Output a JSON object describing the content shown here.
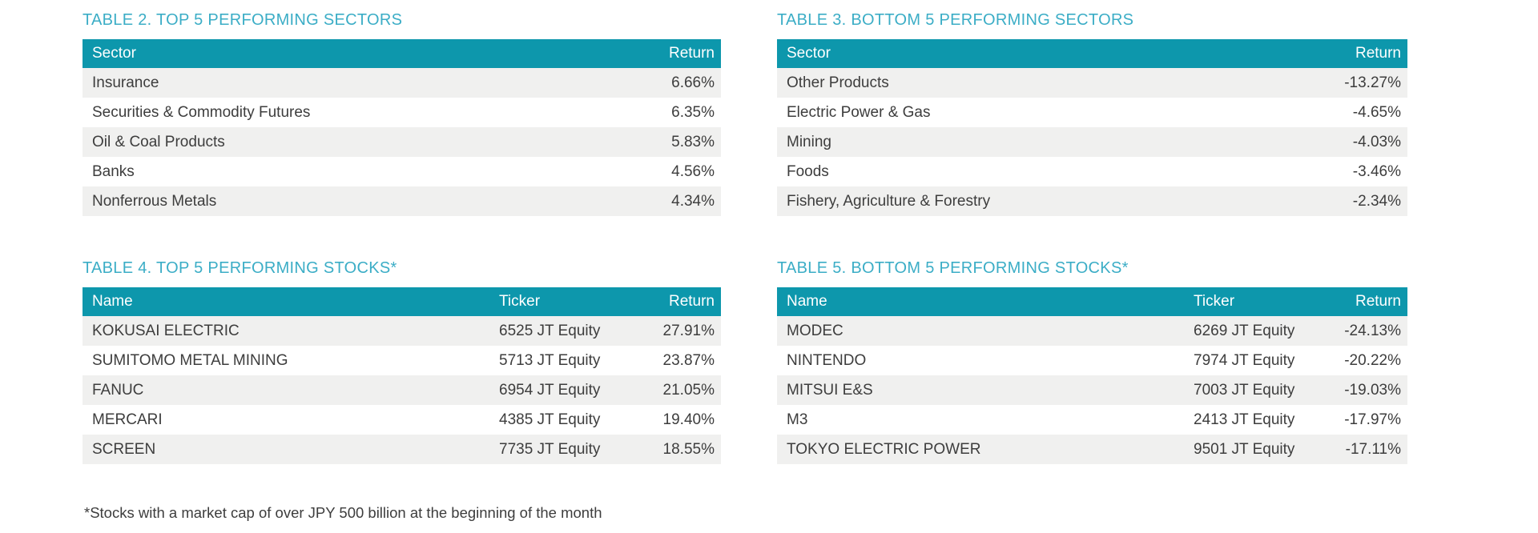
{
  "page": {
    "footnote": "*Stocks with a market cap of over JPY 500 billion at the beginning of the month"
  },
  "colors": {
    "title_accent": "#3badc6",
    "table_header_bg": "#0d97ac",
    "table_header_text": "#ffffff",
    "row_alt_bg": "#f0f0ef",
    "body_text": "#3d3d3d"
  },
  "tables": {
    "top_sectors": {
      "title": "TABLE 2. TOP 5 PERFORMING SECTORS",
      "columns": {
        "sector": "Sector",
        "return": "Return"
      },
      "rows": [
        {
          "sector": "Insurance",
          "return": "6.66%"
        },
        {
          "sector": "Securities & Commodity Futures",
          "return": "6.35%"
        },
        {
          "sector": "Oil & Coal Products",
          "return": "5.83%"
        },
        {
          "sector": "Banks",
          "return": "4.56%"
        },
        {
          "sector": "Nonferrous Metals",
          "return": "4.34%"
        }
      ]
    },
    "bottom_sectors": {
      "title": "TABLE 3. BOTTOM 5 PERFORMING SECTORS",
      "columns": {
        "sector": "Sector",
        "return": "Return"
      },
      "rows": [
        {
          "sector": "Other Products",
          "return": "-13.27%"
        },
        {
          "sector": "Electric Power & Gas",
          "return": "-4.65%"
        },
        {
          "sector": "Mining",
          "return": "-4.03%"
        },
        {
          "sector": "Foods",
          "return": "-3.46%"
        },
        {
          "sector": "Fishery, Agriculture & Forestry",
          "return": "-2.34%"
        }
      ]
    },
    "top_stocks": {
      "title": "TABLE 4. TOP 5 PERFORMING STOCKS*",
      "columns": {
        "name": "Name",
        "ticker": "Ticker",
        "return": "Return"
      },
      "rows": [
        {
          "name": "KOKUSAI ELECTRIC",
          "ticker": "6525 JT Equity",
          "return": "27.91%"
        },
        {
          "name": "SUMITOMO METAL MINING",
          "ticker": "5713 JT Equity",
          "return": "23.87%"
        },
        {
          "name": "FANUC",
          "ticker": "6954 JT Equity",
          "return": "21.05%"
        },
        {
          "name": "MERCARI",
          "ticker": "4385 JT Equity",
          "return": "19.40%"
        },
        {
          "name": "SCREEN",
          "ticker": "7735 JT Equity",
          "return": "18.55%"
        }
      ]
    },
    "bottom_stocks": {
      "title": "TABLE 5. BOTTOM 5 PERFORMING STOCKS*",
      "columns": {
        "name": "Name",
        "ticker": "Ticker",
        "return": "Return"
      },
      "rows": [
        {
          "name": "MODEC",
          "ticker": "6269 JT Equity",
          "return": "-24.13%"
        },
        {
          "name": "NINTENDO",
          "ticker": "7974 JT Equity",
          "return": "-20.22%"
        },
        {
          "name": "MITSUI E&S",
          "ticker": "7003 JT Equity",
          "return": "-19.03%"
        },
        {
          "name": "M3",
          "ticker": "2413 JT Equity",
          "return": "-17.97%"
        },
        {
          "name": "TOKYO ELECTRIC POWER",
          "ticker": "9501 JT Equity",
          "return": "-17.11%"
        }
      ]
    }
  }
}
